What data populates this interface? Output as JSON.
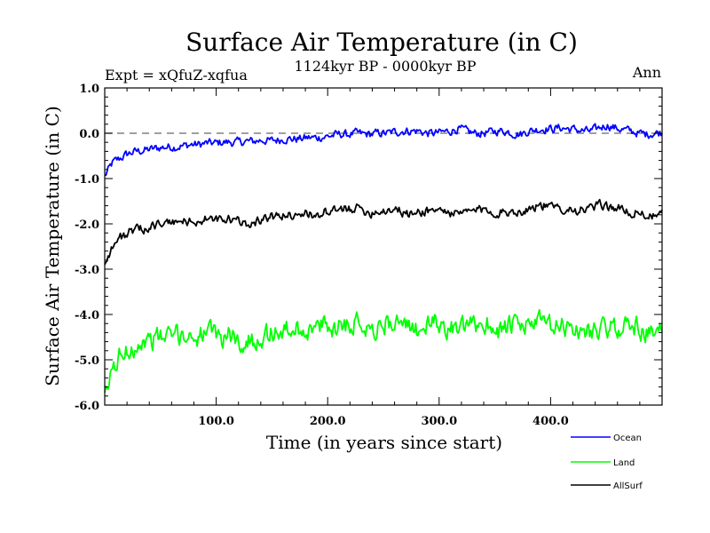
{
  "chart_data": {
    "type": "line",
    "title": "Surface Air Temperature (in C)",
    "subtitle": "1124kyr BP - 0000kyr BP",
    "expt_label": "Expt = xQfuZ-xqfua",
    "period_label": "Ann",
    "xlabel": "Time (in years since start)",
    "ylabel": "Surface Air Temperature (in C)",
    "xlim": [
      0,
      500
    ],
    "ylim": [
      -6.0,
      1.0
    ],
    "x_ticks": [
      100,
      200,
      300,
      400
    ],
    "x_tick_labels": [
      "100.0",
      "200.0",
      "300.0",
      "400.0"
    ],
    "y_ticks": [
      1.0,
      0.0,
      -1.0,
      -2.0,
      -3.0,
      -4.0,
      -5.0,
      -6.0
    ],
    "y_tick_labels": [
      "1.0",
      "0.0",
      "-1.0",
      "-2.0",
      "-3.0",
      "-4.0",
      "-5.0",
      "-6.0"
    ],
    "reference_line": 0.0,
    "legend_position": "bottom-right",
    "series": [
      {
        "name": "Ocean",
        "color": "#0000ff",
        "values": [
          -0.95,
          -0.65,
          -0.55,
          -0.45,
          -0.4,
          -0.38,
          -0.35,
          -0.32,
          -0.3,
          -0.3,
          -0.28,
          -0.25,
          -0.25,
          -0.22,
          -0.22,
          -0.2,
          -0.2,
          -0.2,
          -0.18,
          -0.18,
          -0.15,
          -0.17,
          -0.15,
          -0.12,
          -0.13,
          -0.12,
          -0.1,
          -0.1,
          -0.08,
          -0.05,
          -0.02,
          -0.03,
          0.0,
          -0.02,
          -0.02,
          0.0,
          0.0,
          0.03,
          0.05,
          0.05,
          0.05,
          0.0,
          0.0,
          0.02,
          0.05,
          0.1,
          0.05,
          0.0,
          0.0,
          0.02,
          0.05,
          0.05,
          0.0,
          -0.02,
          0.05,
          0.08,
          0.1,
          0.1,
          0.12,
          0.1,
          0.08,
          0.05,
          0.05,
          0.12,
          0.18,
          0.12,
          0.08,
          0.05,
          0.0,
          -0.02,
          0.0,
          0.02
        ]
      },
      {
        "name": "Land",
        "color": "#00ff00",
        "values": [
          -5.9,
          -5.2,
          -4.9,
          -4.8,
          -4.65,
          -4.6,
          -4.55,
          -4.5,
          -4.5,
          -4.45,
          -4.45,
          -4.5,
          -4.45,
          -4.4,
          -4.45,
          -4.5,
          -4.45,
          -4.6,
          -4.65,
          -4.55,
          -4.5,
          -4.4,
          -4.4,
          -4.35,
          -4.35,
          -4.3,
          -4.35,
          -4.3,
          -4.25,
          -4.3,
          -4.2,
          -4.2,
          -4.15,
          -4.2,
          -4.3,
          -4.3,
          -4.2,
          -4.1,
          -4.3,
          -4.35,
          -4.3,
          -4.25,
          -4.2,
          -4.25,
          -4.3,
          -4.35,
          -4.3,
          -4.25,
          -4.2,
          -4.2,
          -4.35,
          -4.3,
          -4.25,
          -4.3,
          -4.2,
          -4.15,
          -4.2,
          -4.3,
          -4.3,
          -4.25,
          -4.35,
          -4.4,
          -4.35,
          -4.3,
          -4.35,
          -4.3,
          -4.25,
          -4.2,
          -4.3,
          -4.4,
          -4.45,
          -4.4
        ]
      },
      {
        "name": "AllSurf",
        "color": "#000000",
        "values": [
          -2.85,
          -2.5,
          -2.3,
          -2.2,
          -2.15,
          -2.1,
          -2.05,
          -2.0,
          -2.0,
          -1.95,
          -1.95,
          -1.95,
          -1.95,
          -1.9,
          -1.9,
          -1.95,
          -1.9,
          -1.95,
          -2.0,
          -1.95,
          -1.9,
          -1.85,
          -1.85,
          -1.8,
          -1.8,
          -1.75,
          -1.8,
          -1.8,
          -1.75,
          -1.75,
          -1.7,
          -1.65,
          -1.65,
          -1.7,
          -1.75,
          -1.7,
          -1.7,
          -1.65,
          -1.75,
          -1.8,
          -1.75,
          -1.7,
          -1.7,
          -1.7,
          -1.75,
          -1.8,
          -1.75,
          -1.7,
          -1.7,
          -1.7,
          -1.75,
          -1.75,
          -1.7,
          -1.75,
          -1.65,
          -1.6,
          -1.6,
          -1.65,
          -1.65,
          -1.65,
          -1.7,
          -1.7,
          -1.65,
          -1.6,
          -1.6,
          -1.65,
          -1.7,
          -1.75,
          -1.75,
          -1.8,
          -1.85,
          -1.8
        ]
      }
    ]
  }
}
